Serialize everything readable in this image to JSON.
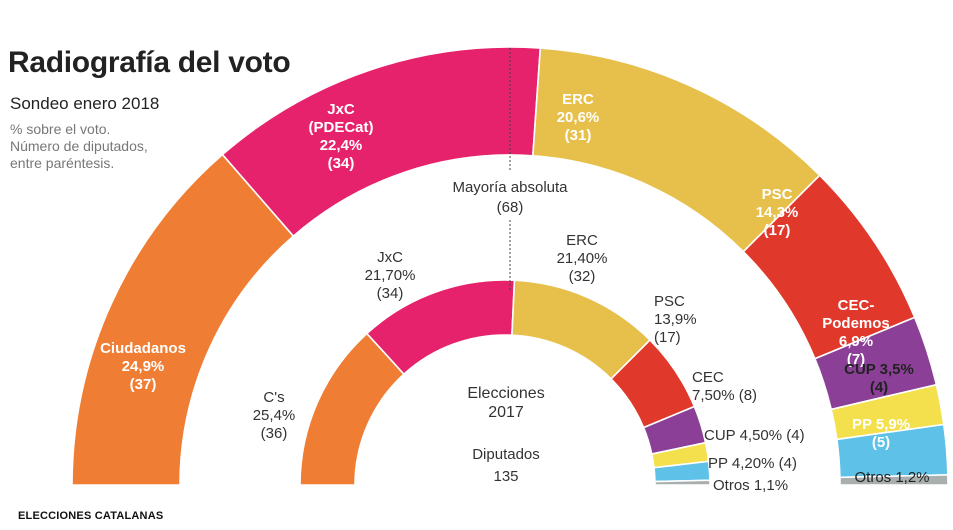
{
  "header": {
    "title": "Radiografía del voto",
    "subtitle": "Sondeo enero 2018",
    "note_lines": [
      "% sobre el voto.",
      "Número de diputados,",
      "entre paréntesis."
    ]
  },
  "footer": "ELECCIONES CATALANAS",
  "majority": {
    "line1": "Mayoría absoluta",
    "line2": "(68)"
  },
  "center": {
    "line1": "Elecciones",
    "line2": "2017",
    "line3": "Diputados",
    "line4": "135"
  },
  "chart_data": [
    {
      "type": "pie",
      "name": "Sondeo enero 2018",
      "total_seats": 135,
      "slices": [
        {
          "party": "Ciudadanos",
          "pct": "24,9%",
          "seats": 37,
          "color": "#EF7E34",
          "label_lines": [
            "Ciudadanos",
            "24,9%",
            "(37)"
          ]
        },
        {
          "party": "JxC (PDECat)",
          "pct": "22,4%",
          "seats": 34,
          "color": "#E5226B",
          "label_lines": [
            "JxC",
            "(PDECat)",
            "22,4%",
            "(34)"
          ]
        },
        {
          "party": "ERC",
          "pct": "20,6%",
          "seats": 31,
          "color": "#E7C04C",
          "label_lines": [
            "ERC",
            "20,6%",
            "(31)"
          ]
        },
        {
          "party": "PSC",
          "pct": "14,3%",
          "seats": 17,
          "color": "#E0382B",
          "label_lines": [
            "PSC",
            "14,3%",
            "(17)"
          ]
        },
        {
          "party": "CEC-Podemos",
          "pct": "6,9%",
          "seats": 7,
          "color": "#8B3F97",
          "label_lines": [
            "CEC-",
            "Podemos",
            "6,9%",
            "(7)"
          ]
        },
        {
          "party": "CUP",
          "pct": "3,5%",
          "seats": 4,
          "color": "#F3E04C",
          "label_lines": [
            "CUP 3,5%",
            "(4)"
          ]
        },
        {
          "party": "PP",
          "pct": "5,9%",
          "seats": 5,
          "color": "#5EC1E8",
          "label_lines": [
            "PP 5,9%",
            "(5)"
          ]
        },
        {
          "party": "Otros",
          "pct": "1,2%",
          "seats": 0,
          "color": "#A9AFAF",
          "label_lines": [
            "Otros 1,2%"
          ]
        }
      ]
    },
    {
      "type": "pie",
      "name": "Elecciones 2017",
      "total_seats": 135,
      "slices": [
        {
          "party": "C's",
          "pct": "25,4%",
          "seats": 36,
          "color": "#EF7E34",
          "label_lines": [
            "C's",
            "25,4%",
            "(36)"
          ]
        },
        {
          "party": "JxC",
          "pct": "21,70%",
          "seats": 34,
          "color": "#E5226B",
          "label_lines": [
            "JxC",
            "21,70%",
            "(34)"
          ]
        },
        {
          "party": "ERC",
          "pct": "21,40%",
          "seats": 32,
          "color": "#E7C04C",
          "label_lines": [
            "ERC",
            "21,40%",
            "(32)"
          ]
        },
        {
          "party": "PSC",
          "pct": "13,9%",
          "seats": 17,
          "color": "#E0382B",
          "label_lines": [
            "PSC",
            "13,9%",
            "(17)"
          ]
        },
        {
          "party": "CEC",
          "pct": "7,50%",
          "seats": 8,
          "color": "#8B3F97",
          "label_lines": [
            "CEC",
            "7,50% (8)"
          ]
        },
        {
          "party": "CUP",
          "pct": "4,50%",
          "seats": 4,
          "color": "#F3E04C",
          "label_lines": [
            "CUP 4,50% (4)"
          ]
        },
        {
          "party": "PP",
          "pct": "4,20%",
          "seats": 4,
          "color": "#5EC1E8",
          "label_lines": [
            "PP 4,20% (4)"
          ]
        },
        {
          "party": "Otros",
          "pct": "1,1%",
          "seats": 0,
          "color": "#A9AFAF",
          "label_lines": [
            "Otros 1,1%"
          ]
        }
      ]
    }
  ]
}
